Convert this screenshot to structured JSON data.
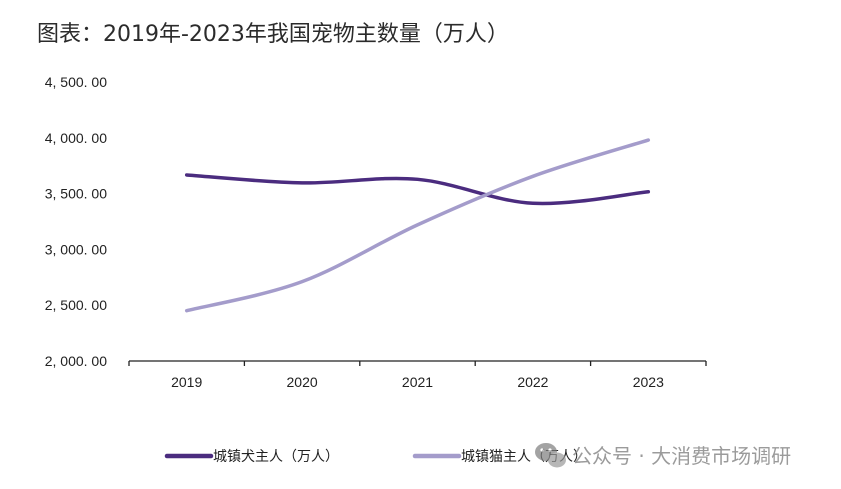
{
  "chart_data": {
    "type": "line",
    "title": "图表：2019年-2023年我国宠物主数量（万人）",
    "xlabel": "",
    "ylabel": "",
    "categories": [
      "2019",
      "2020",
      "2021",
      "2022",
      "2023"
    ],
    "ylim": [
      2000,
      4500
    ],
    "yticks": [
      2000,
      2500,
      3000,
      3500,
      4000,
      4500
    ],
    "ytick_labels": [
      "2, 000. 00",
      "2, 500. 00",
      "3, 000. 00",
      "3, 500. 00",
      "4, 000. 00",
      "4, 500. 00"
    ],
    "grid": false,
    "smooth": true,
    "legend_position": "bottom",
    "series": [
      {
        "name": "城镇犬主人（万人）",
        "color": "#4b2c7f",
        "values": [
          3667,
          3596,
          3628,
          3413,
          3517
        ]
      },
      {
        "name": "城镇猫主人（万人）",
        "color": "#a49ccb",
        "values": [
          2451,
          2711,
          3220,
          3655,
          3980
        ]
      }
    ]
  },
  "watermark": {
    "icon": "wechat-icon",
    "text": "公众号 · 大消费市场调研"
  }
}
